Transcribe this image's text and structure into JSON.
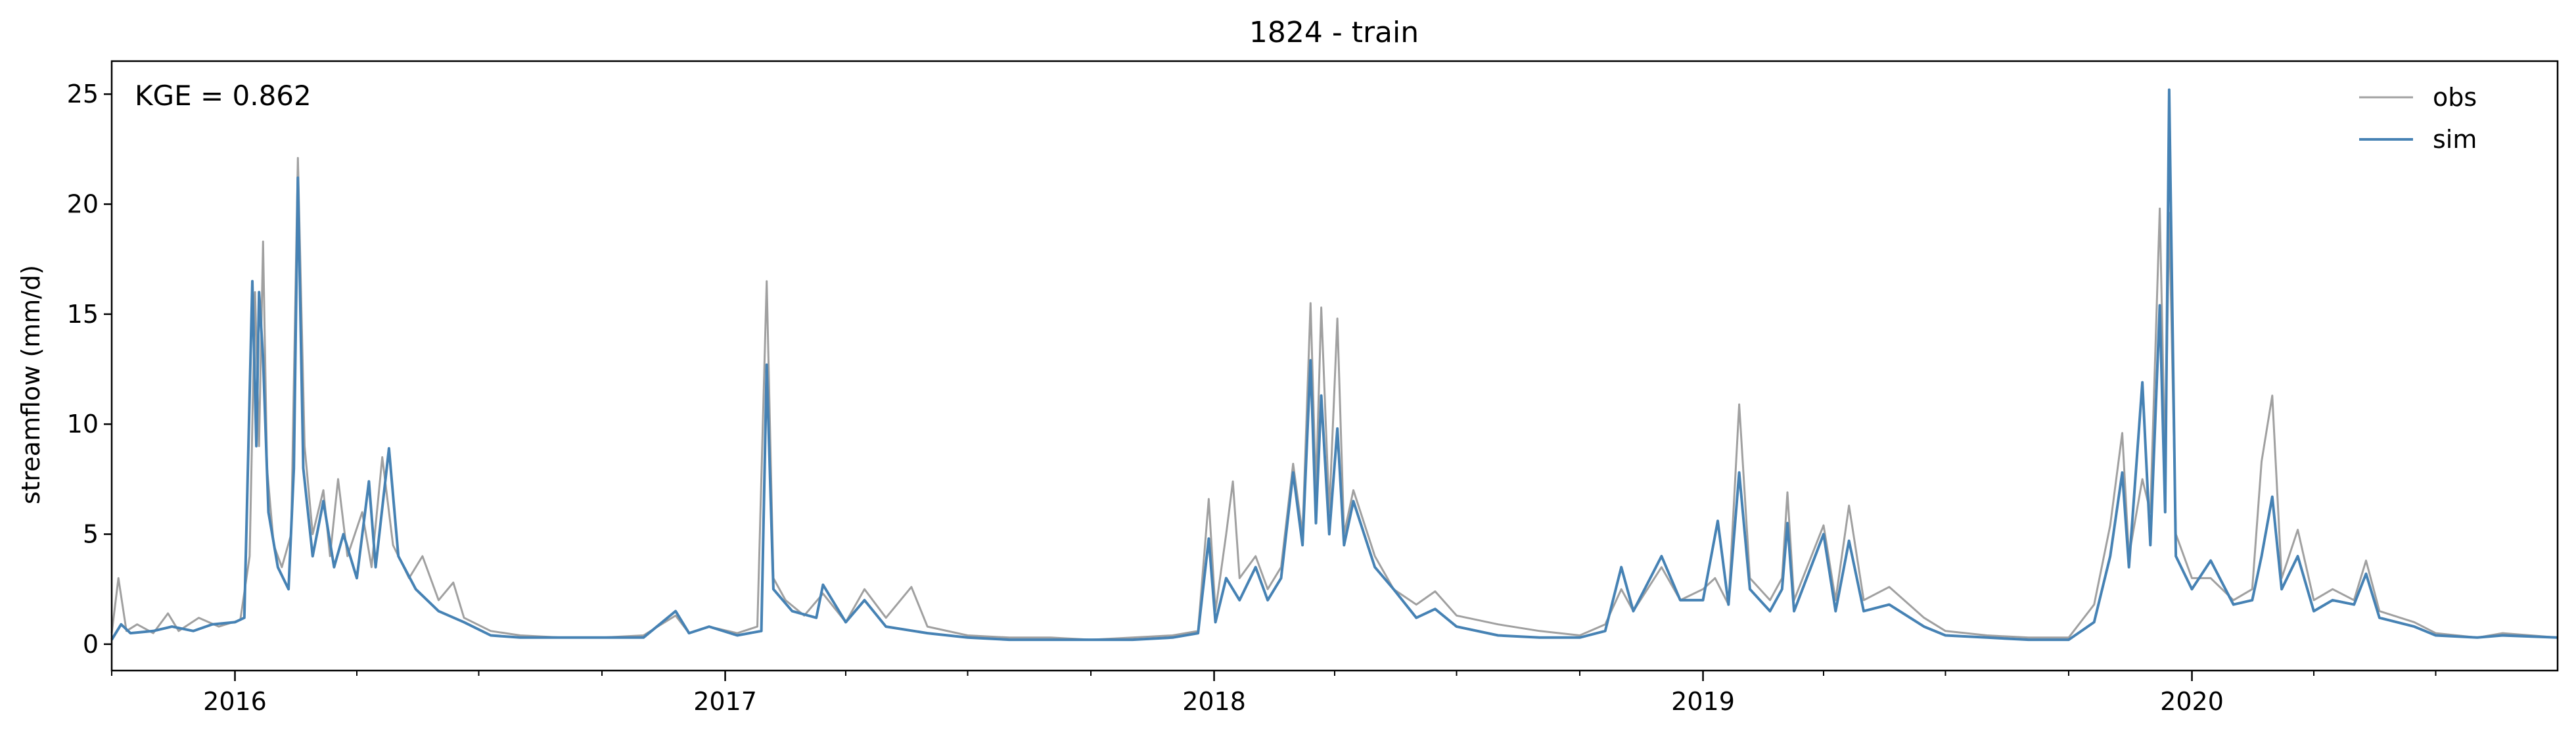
{
  "colors": {
    "obs": "#a0a0a0",
    "sim": "#4682b4",
    "axis": "#000000"
  },
  "chart_data": {
    "type": "line",
    "title": "1824 - train",
    "xlabel": "",
    "ylabel": "streamflow (mm/d)",
    "annotation": "KGE = 0.862",
    "legend_position": "top-right",
    "grid": false,
    "xlim": [
      "2015-10-01",
      "2020-09-30"
    ],
    "ylim": [
      -1.2,
      26.5
    ],
    "y_ticks": [
      0,
      5,
      10,
      15,
      20,
      25
    ],
    "x_ticks": [
      "2016",
      "2017",
      "2018",
      "2019",
      "2020"
    ],
    "x_tick_dates": [
      "2016-01-01",
      "2017-01-01",
      "2018-01-01",
      "2019-01-01",
      "2020-01-01"
    ],
    "series": [
      {
        "name": "obs",
        "points": [
          [
            "2015-10-01",
            0.5
          ],
          [
            "2015-10-06",
            3.0
          ],
          [
            "2015-10-12",
            0.6
          ],
          [
            "2015-10-20",
            0.9
          ],
          [
            "2015-11-01",
            0.5
          ],
          [
            "2015-11-12",
            1.4
          ],
          [
            "2015-11-20",
            0.6
          ],
          [
            "2015-12-05",
            1.2
          ],
          [
            "2015-12-20",
            0.8
          ],
          [
            "2016-01-05",
            1.1
          ],
          [
            "2016-01-12",
            4.0
          ],
          [
            "2016-01-16",
            16.0
          ],
          [
            "2016-01-19",
            9.0
          ],
          [
            "2016-01-22",
            18.3
          ],
          [
            "2016-01-25",
            8.0
          ],
          [
            "2016-01-30",
            4.5
          ],
          [
            "2016-02-05",
            3.5
          ],
          [
            "2016-02-12",
            5.0
          ],
          [
            "2016-02-17",
            22.1
          ],
          [
            "2016-02-22",
            9.0
          ],
          [
            "2016-02-28",
            5.0
          ],
          [
            "2016-03-07",
            7.0
          ],
          [
            "2016-03-12",
            4.0
          ],
          [
            "2016-03-18",
            7.5
          ],
          [
            "2016-03-25",
            4.0
          ],
          [
            "2016-04-05",
            6.0
          ],
          [
            "2016-04-12",
            3.5
          ],
          [
            "2016-04-20",
            8.5
          ],
          [
            "2016-04-28",
            4.5
          ],
          [
            "2016-05-10",
            3.0
          ],
          [
            "2016-05-20",
            4.0
          ],
          [
            "2016-06-01",
            2.0
          ],
          [
            "2016-06-12",
            2.8
          ],
          [
            "2016-06-20",
            1.2
          ],
          [
            "2016-07-10",
            0.6
          ],
          [
            "2016-08-01",
            0.4
          ],
          [
            "2016-09-01",
            0.3
          ],
          [
            "2016-10-01",
            0.3
          ],
          [
            "2016-11-01",
            0.4
          ],
          [
            "2016-11-25",
            1.3
          ],
          [
            "2016-12-05",
            0.5
          ],
          [
            "2016-12-20",
            0.8
          ],
          [
            "2017-01-10",
            0.5
          ],
          [
            "2017-01-25",
            0.8
          ],
          [
            "2017-02-01",
            16.5
          ],
          [
            "2017-02-06",
            3.0
          ],
          [
            "2017-02-15",
            2.0
          ],
          [
            "2017-03-01",
            1.3
          ],
          [
            "2017-03-15",
            2.3
          ],
          [
            "2017-04-01",
            1.0
          ],
          [
            "2017-04-15",
            2.5
          ],
          [
            "2017-05-01",
            1.2
          ],
          [
            "2017-05-20",
            2.6
          ],
          [
            "2017-06-01",
            0.8
          ],
          [
            "2017-07-01",
            0.4
          ],
          [
            "2017-08-01",
            0.3
          ],
          [
            "2017-09-01",
            0.3
          ],
          [
            "2017-10-01",
            0.2
          ],
          [
            "2017-11-01",
            0.3
          ],
          [
            "2017-12-01",
            0.4
          ],
          [
            "2017-12-20",
            0.6
          ],
          [
            "2017-12-28",
            6.6
          ],
          [
            "2018-01-02",
            1.5
          ],
          [
            "2018-01-10",
            5.0
          ],
          [
            "2018-01-15",
            7.4
          ],
          [
            "2018-01-20",
            3.0
          ],
          [
            "2018-02-01",
            4.0
          ],
          [
            "2018-02-10",
            2.5
          ],
          [
            "2018-02-20",
            3.5
          ],
          [
            "2018-03-01",
            8.2
          ],
          [
            "2018-03-08",
            5.0
          ],
          [
            "2018-03-14",
            15.5
          ],
          [
            "2018-03-18",
            7.0
          ],
          [
            "2018-03-22",
            15.3
          ],
          [
            "2018-03-28",
            6.0
          ],
          [
            "2018-04-03",
            14.8
          ],
          [
            "2018-04-08",
            5.0
          ],
          [
            "2018-04-15",
            7.0
          ],
          [
            "2018-05-01",
            4.0
          ],
          [
            "2018-05-15",
            2.5
          ],
          [
            "2018-06-01",
            1.8
          ],
          [
            "2018-06-15",
            2.4
          ],
          [
            "2018-07-01",
            1.3
          ],
          [
            "2018-08-01",
            0.9
          ],
          [
            "2018-09-01",
            0.6
          ],
          [
            "2018-10-01",
            0.4
          ],
          [
            "2018-10-20",
            0.9
          ],
          [
            "2018-11-01",
            2.5
          ],
          [
            "2018-11-10",
            1.5
          ],
          [
            "2018-12-01",
            3.5
          ],
          [
            "2018-12-15",
            2.0
          ],
          [
            "2019-01-01",
            2.5
          ],
          [
            "2019-01-10",
            3.0
          ],
          [
            "2019-01-20",
            1.8
          ],
          [
            "2019-01-28",
            10.9
          ],
          [
            "2019-02-05",
            3.0
          ],
          [
            "2019-02-20",
            2.0
          ],
          [
            "2019-03-01",
            3.0
          ],
          [
            "2019-03-05",
            6.9
          ],
          [
            "2019-03-10",
            2.0
          ],
          [
            "2019-04-01",
            5.4
          ],
          [
            "2019-04-10",
            2.0
          ],
          [
            "2019-04-20",
            6.3
          ],
          [
            "2019-05-01",
            2.0
          ],
          [
            "2019-05-20",
            2.6
          ],
          [
            "2019-06-15",
            1.2
          ],
          [
            "2019-07-01",
            0.6
          ],
          [
            "2019-08-01",
            0.4
          ],
          [
            "2019-09-01",
            0.3
          ],
          [
            "2019-10-01",
            0.3
          ],
          [
            "2019-10-20",
            1.8
          ],
          [
            "2019-11-01",
            5.4
          ],
          [
            "2019-11-10",
            9.6
          ],
          [
            "2019-11-15",
            4.0
          ],
          [
            "2019-11-25",
            7.5
          ],
          [
            "2019-12-01",
            6.0
          ],
          [
            "2019-12-08",
            19.8
          ],
          [
            "2019-12-12",
            8.0
          ],
          [
            "2019-12-15",
            19.6
          ],
          [
            "2019-12-20",
            5.0
          ],
          [
            "2020-01-01",
            3.0
          ],
          [
            "2020-01-15",
            3.0
          ],
          [
            "2020-02-01",
            2.0
          ],
          [
            "2020-02-15",
            2.5
          ],
          [
            "2020-02-22",
            8.3
          ],
          [
            "2020-03-01",
            11.3
          ],
          [
            "2020-03-08",
            3.0
          ],
          [
            "2020-03-20",
            5.2
          ],
          [
            "2020-04-01",
            2.0
          ],
          [
            "2020-04-15",
            2.5
          ],
          [
            "2020-05-01",
            2.0
          ],
          [
            "2020-05-10",
            3.8
          ],
          [
            "2020-05-20",
            1.5
          ],
          [
            "2020-06-15",
            1.0
          ],
          [
            "2020-07-01",
            0.5
          ],
          [
            "2020-08-01",
            0.3
          ],
          [
            "2020-08-20",
            0.5
          ],
          [
            "2020-09-30",
            0.3
          ]
        ]
      },
      {
        "name": "sim",
        "points": [
          [
            "2015-10-01",
            0.2
          ],
          [
            "2015-10-08",
            0.9
          ],
          [
            "2015-10-15",
            0.5
          ],
          [
            "2015-11-01",
            0.6
          ],
          [
            "2015-11-15",
            0.8
          ],
          [
            "2015-12-01",
            0.6
          ],
          [
            "2015-12-15",
            0.9
          ],
          [
            "2016-01-01",
            1.0
          ],
          [
            "2016-01-08",
            1.2
          ],
          [
            "2016-01-14",
            16.5
          ],
          [
            "2016-01-17",
            9.0
          ],
          [
            "2016-01-19",
            16.0
          ],
          [
            "2016-01-22",
            13.0
          ],
          [
            "2016-01-26",
            6.0
          ],
          [
            "2016-02-02",
            3.5
          ],
          [
            "2016-02-10",
            2.5
          ],
          [
            "2016-02-14",
            8.0
          ],
          [
            "2016-02-17",
            21.2
          ],
          [
            "2016-02-21",
            8.0
          ],
          [
            "2016-02-28",
            4.0
          ],
          [
            "2016-03-07",
            6.5
          ],
          [
            "2016-03-15",
            3.5
          ],
          [
            "2016-03-22",
            5.0
          ],
          [
            "2016-04-01",
            3.0
          ],
          [
            "2016-04-10",
            7.4
          ],
          [
            "2016-04-15",
            3.5
          ],
          [
            "2016-04-25",
            8.9
          ],
          [
            "2016-05-02",
            4.0
          ],
          [
            "2016-05-15",
            2.5
          ],
          [
            "2016-06-01",
            1.5
          ],
          [
            "2016-06-20",
            1.0
          ],
          [
            "2016-07-10",
            0.4
          ],
          [
            "2016-08-01",
            0.3
          ],
          [
            "2016-09-01",
            0.3
          ],
          [
            "2016-10-01",
            0.3
          ],
          [
            "2016-11-01",
            0.3
          ],
          [
            "2016-11-25",
            1.5
          ],
          [
            "2016-12-05",
            0.5
          ],
          [
            "2016-12-20",
            0.8
          ],
          [
            "2017-01-10",
            0.4
          ],
          [
            "2017-01-28",
            0.6
          ],
          [
            "2017-02-01",
            12.7
          ],
          [
            "2017-02-06",
            2.5
          ],
          [
            "2017-02-20",
            1.5
          ],
          [
            "2017-03-10",
            1.2
          ],
          [
            "2017-03-15",
            2.7
          ],
          [
            "2017-04-01",
            1.0
          ],
          [
            "2017-04-15",
            2.0
          ],
          [
            "2017-05-01",
            0.8
          ],
          [
            "2017-06-01",
            0.5
          ],
          [
            "2017-07-01",
            0.3
          ],
          [
            "2017-08-01",
            0.2
          ],
          [
            "2017-09-01",
            0.2
          ],
          [
            "2017-10-01",
            0.2
          ],
          [
            "2017-11-01",
            0.2
          ],
          [
            "2017-12-01",
            0.3
          ],
          [
            "2017-12-20",
            0.5
          ],
          [
            "2017-12-28",
            4.8
          ],
          [
            "2018-01-02",
            1.0
          ],
          [
            "2018-01-10",
            3.0
          ],
          [
            "2018-01-20",
            2.0
          ],
          [
            "2018-02-01",
            3.5
          ],
          [
            "2018-02-10",
            2.0
          ],
          [
            "2018-02-20",
            3.0
          ],
          [
            "2018-03-01",
            7.8
          ],
          [
            "2018-03-08",
            4.5
          ],
          [
            "2018-03-14",
            12.9
          ],
          [
            "2018-03-18",
            5.5
          ],
          [
            "2018-03-22",
            11.3
          ],
          [
            "2018-03-28",
            5.0
          ],
          [
            "2018-04-03",
            9.8
          ],
          [
            "2018-04-08",
            4.5
          ],
          [
            "2018-04-15",
            6.5
          ],
          [
            "2018-05-01",
            3.5
          ],
          [
            "2018-05-15",
            2.5
          ],
          [
            "2018-06-01",
            1.2
          ],
          [
            "2018-06-15",
            1.6
          ],
          [
            "2018-07-01",
            0.8
          ],
          [
            "2018-08-01",
            0.4
          ],
          [
            "2018-09-01",
            0.3
          ],
          [
            "2018-10-01",
            0.3
          ],
          [
            "2018-10-20",
            0.6
          ],
          [
            "2018-11-01",
            3.5
          ],
          [
            "2018-11-10",
            1.5
          ],
          [
            "2018-12-01",
            4.0
          ],
          [
            "2018-12-15",
            2.0
          ],
          [
            "2019-01-01",
            2.0
          ],
          [
            "2019-01-12",
            5.6
          ],
          [
            "2019-01-20",
            1.8
          ],
          [
            "2019-01-28",
            7.8
          ],
          [
            "2019-02-05",
            2.5
          ],
          [
            "2019-02-20",
            1.5
          ],
          [
            "2019-03-01",
            2.5
          ],
          [
            "2019-03-05",
            5.5
          ],
          [
            "2019-03-10",
            1.5
          ],
          [
            "2019-04-01",
            5.0
          ],
          [
            "2019-04-10",
            1.5
          ],
          [
            "2019-04-20",
            4.7
          ],
          [
            "2019-05-01",
            1.5
          ],
          [
            "2019-05-20",
            1.8
          ],
          [
            "2019-06-15",
            0.8
          ],
          [
            "2019-07-01",
            0.4
          ],
          [
            "2019-08-01",
            0.3
          ],
          [
            "2019-09-01",
            0.2
          ],
          [
            "2019-10-01",
            0.2
          ],
          [
            "2019-10-20",
            1.0
          ],
          [
            "2019-11-01",
            4.0
          ],
          [
            "2019-11-10",
            7.8
          ],
          [
            "2019-11-15",
            3.5
          ],
          [
            "2019-11-25",
            11.9
          ],
          [
            "2019-12-01",
            4.5
          ],
          [
            "2019-12-08",
            15.4
          ],
          [
            "2019-12-12",
            6.0
          ],
          [
            "2019-12-15",
            25.2
          ],
          [
            "2019-12-20",
            4.0
          ],
          [
            "2020-01-01",
            2.5
          ],
          [
            "2020-01-15",
            3.8
          ],
          [
            "2020-02-01",
            1.8
          ],
          [
            "2020-02-15",
            2.0
          ],
          [
            "2020-02-22",
            4.0
          ],
          [
            "2020-03-01",
            6.7
          ],
          [
            "2020-03-08",
            2.5
          ],
          [
            "2020-03-20",
            4.0
          ],
          [
            "2020-04-01",
            1.5
          ],
          [
            "2020-04-15",
            2.0
          ],
          [
            "2020-05-01",
            1.8
          ],
          [
            "2020-05-10",
            3.2
          ],
          [
            "2020-05-20",
            1.2
          ],
          [
            "2020-06-15",
            0.8
          ],
          [
            "2020-07-01",
            0.4
          ],
          [
            "2020-08-01",
            0.3
          ],
          [
            "2020-08-20",
            0.4
          ],
          [
            "2020-09-30",
            0.3
          ]
        ]
      }
    ]
  }
}
